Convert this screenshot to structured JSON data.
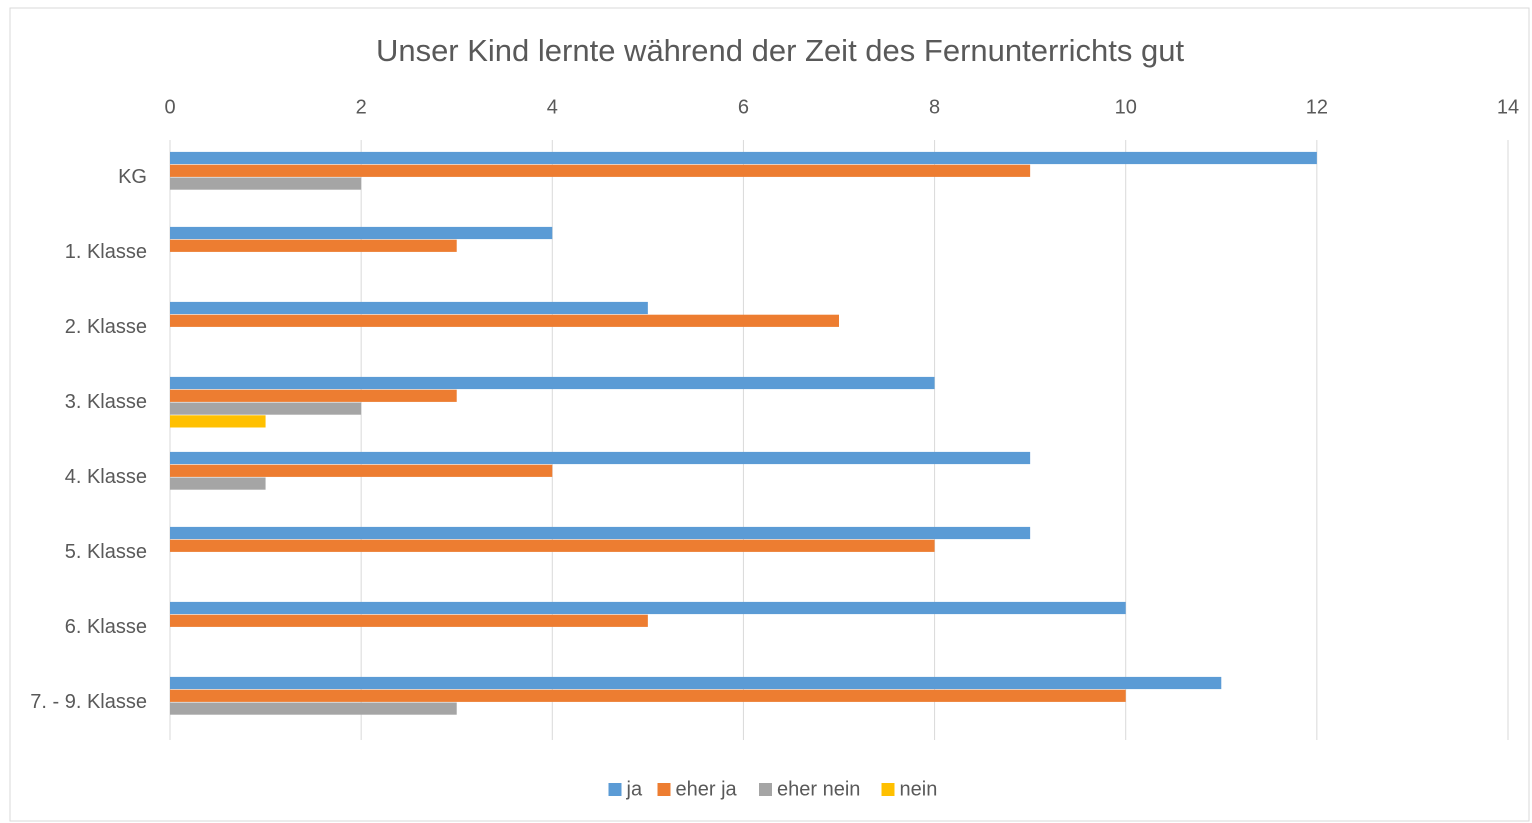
{
  "chart_data": {
    "type": "hbar",
    "title": "Unser Kind lernte während der Zeit des Fernunterrichts gut",
    "categories": [
      "KG",
      "1. Klasse",
      "2. Klasse",
      "3. Klasse",
      "4. Klasse",
      "5. Klasse",
      "6. Klasse",
      "7. - 9. Klasse"
    ],
    "series": [
      {
        "name": "ja",
        "color": "#5b9bd5",
        "values": [
          12,
          4,
          5,
          8,
          9,
          9,
          10,
          11
        ]
      },
      {
        "name": "eher ja",
        "color": "#ed7d31",
        "values": [
          9,
          3,
          7,
          3,
          4,
          8,
          5,
          10
        ]
      },
      {
        "name": "eher nein",
        "color": "#a5a5a5",
        "values": [
          2,
          0,
          0,
          2,
          1,
          0,
          0,
          3
        ]
      },
      {
        "name": "nein",
        "color": "#ffc000",
        "values": [
          0,
          0,
          0,
          1,
          0,
          0,
          0,
          0
        ]
      }
    ],
    "xlim": [
      0,
      14
    ],
    "xticks": [
      0,
      2,
      4,
      6,
      8,
      10,
      12,
      14
    ],
    "grid": true,
    "legend": "bottom"
  }
}
